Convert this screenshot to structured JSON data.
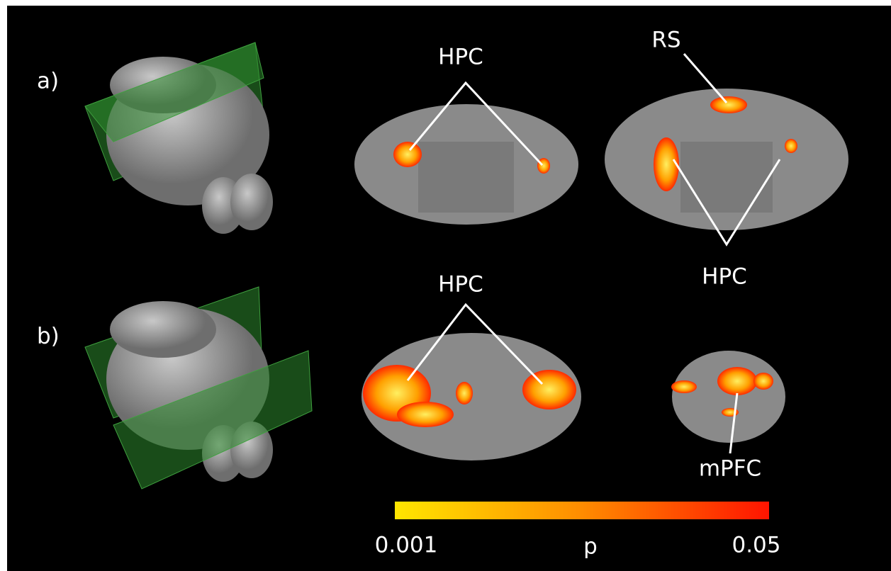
{
  "panels": [
    {
      "label": "a)",
      "annotations": [
        "HPC",
        "RS",
        "HPC"
      ]
    },
    {
      "label": "b)",
      "annotations": [
        "HPC",
        "mPFC"
      ]
    }
  ],
  "colorbar": {
    "title": "p",
    "min_label": "0.001",
    "max_label": "0.05"
  }
}
